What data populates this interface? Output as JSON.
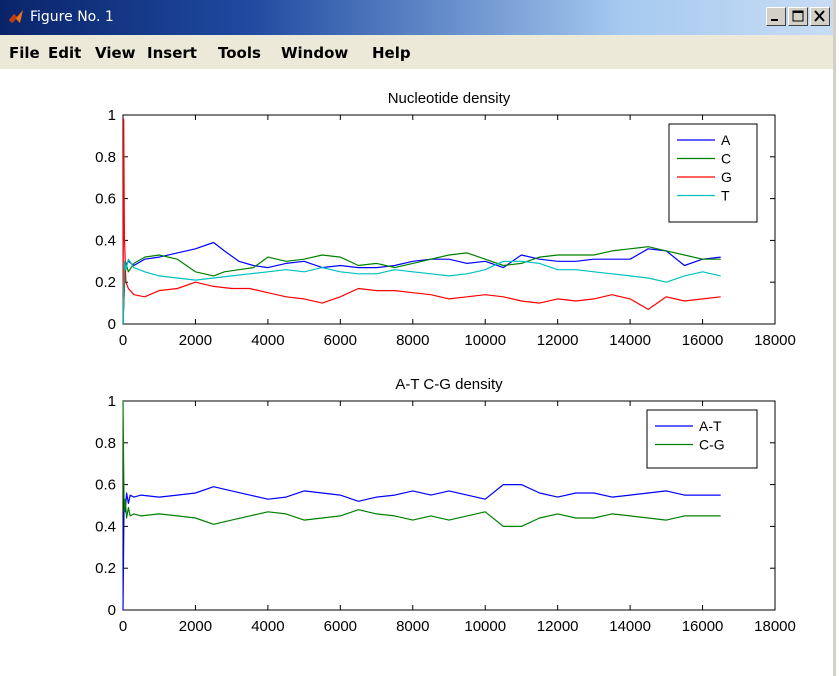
{
  "window": {
    "title": "Figure No. 1"
  },
  "menu": [
    "File",
    "Edit",
    "View",
    "Insert",
    "Tools",
    "Window",
    "Help"
  ],
  "colors": {
    "A": "#0000ff",
    "C": "#008000",
    "G": "#ff0000",
    "T": "#00c0c0",
    "AT": "#0000ff",
    "CG": "#008000"
  },
  "icons": {
    "app": "matlab-logo-icon",
    "minimize": "minimize-icon",
    "maximize": "maximize-icon",
    "close": "close-icon"
  },
  "chart_data": [
    {
      "type": "line",
      "title": "Nucleotide density",
      "xlabel": "",
      "ylabel": "",
      "xlim": [
        0,
        18000
      ],
      "ylim": [
        0,
        1
      ],
      "xticks": [
        0,
        2000,
        4000,
        6000,
        8000,
        10000,
        12000,
        14000,
        16000,
        18000
      ],
      "xtick_labels": [
        "0",
        "2000",
        "4000",
        "6000",
        "8000",
        "10000",
        "12000",
        "14000",
        "16000",
        "18000"
      ],
      "yticks": [
        0,
        0.2,
        0.4,
        0.6,
        0.8,
        1
      ],
      "ytick_labels": [
        "0",
        "0.2",
        "0.4",
        "0.6",
        "0.8",
        "1"
      ],
      "legend_position": "top-right",
      "series": [
        {
          "name": "A",
          "x": [
            0,
            60,
            150,
            300,
            600,
            1000,
            1500,
            2000,
            2500,
            2800,
            3200,
            3600,
            4000,
            4500,
            5000,
            5500,
            6000,
            6500,
            7000,
            7500,
            8000,
            8500,
            9000,
            9500,
            10000,
            10500,
            11000,
            11500,
            12000,
            12500,
            13000,
            13500,
            14000,
            14500,
            15000,
            15500,
            16000,
            16500
          ],
          "y": [
            0.0,
            0.28,
            0.3,
            0.28,
            0.31,
            0.32,
            0.34,
            0.36,
            0.39,
            0.35,
            0.3,
            0.28,
            0.27,
            0.29,
            0.3,
            0.27,
            0.28,
            0.27,
            0.27,
            0.28,
            0.3,
            0.31,
            0.31,
            0.29,
            0.3,
            0.27,
            0.33,
            0.31,
            0.3,
            0.3,
            0.31,
            0.31,
            0.31,
            0.36,
            0.35,
            0.28,
            0.31,
            0.32
          ]
        },
        {
          "name": "C",
          "x": [
            0,
            60,
            150,
            300,
            600,
            1000,
            1500,
            2000,
            2500,
            2800,
            3200,
            3600,
            4000,
            4500,
            5000,
            5500,
            6000,
            6500,
            7000,
            7500,
            8000,
            8500,
            9000,
            9500,
            10000,
            10500,
            11000,
            11500,
            12000,
            12500,
            13000,
            13500,
            14000,
            14500,
            15000,
            15500,
            16000,
            16500
          ],
          "y": [
            0.0,
            0.3,
            0.25,
            0.29,
            0.32,
            0.33,
            0.31,
            0.25,
            0.23,
            0.25,
            0.26,
            0.27,
            0.32,
            0.3,
            0.31,
            0.33,
            0.32,
            0.28,
            0.29,
            0.27,
            0.29,
            0.31,
            0.33,
            0.34,
            0.31,
            0.28,
            0.29,
            0.32,
            0.33,
            0.33,
            0.33,
            0.35,
            0.36,
            0.37,
            0.35,
            0.33,
            0.31,
            0.31
          ]
        },
        {
          "name": "G",
          "x": [
            0,
            20,
            40,
            80,
            150,
            300,
            600,
            1000,
            1500,
            2000,
            2500,
            3000,
            3500,
            4000,
            4500,
            5000,
            5500,
            6000,
            6500,
            7000,
            7500,
            8000,
            8500,
            9000,
            9500,
            10000,
            10500,
            11000,
            11500,
            12000,
            12500,
            13000,
            13500,
            14000,
            14500,
            15000,
            15500,
            16000,
            16500
          ],
          "y": [
            0.0,
            0.98,
            0.42,
            0.2,
            0.17,
            0.14,
            0.13,
            0.16,
            0.17,
            0.2,
            0.18,
            0.17,
            0.17,
            0.15,
            0.13,
            0.12,
            0.1,
            0.13,
            0.17,
            0.16,
            0.16,
            0.15,
            0.14,
            0.12,
            0.13,
            0.14,
            0.13,
            0.11,
            0.1,
            0.12,
            0.11,
            0.12,
            0.14,
            0.12,
            0.07,
            0.13,
            0.11,
            0.12,
            0.13
          ]
        },
        {
          "name": "T",
          "x": [
            0,
            40,
            80,
            150,
            300,
            600,
            1000,
            1500,
            2000,
            2500,
            3000,
            3500,
            4000,
            4500,
            5000,
            5500,
            6000,
            6500,
            7000,
            7500,
            8000,
            8500,
            9000,
            9500,
            10000,
            10500,
            11000,
            11500,
            12000,
            12500,
            13000,
            13500,
            14000,
            14500,
            15000,
            15500,
            16000,
            16500
          ],
          "y": [
            0.0,
            0.3,
            0.26,
            0.31,
            0.27,
            0.25,
            0.23,
            0.22,
            0.21,
            0.22,
            0.23,
            0.24,
            0.25,
            0.26,
            0.25,
            0.27,
            0.25,
            0.24,
            0.24,
            0.26,
            0.25,
            0.24,
            0.23,
            0.24,
            0.26,
            0.3,
            0.3,
            0.29,
            0.26,
            0.26,
            0.25,
            0.24,
            0.23,
            0.22,
            0.2,
            0.23,
            0.25,
            0.23
          ]
        }
      ]
    },
    {
      "type": "line",
      "title": "A-T C-G density",
      "xlabel": "",
      "ylabel": "",
      "xlim": [
        0,
        18000
      ],
      "ylim": [
        0,
        1
      ],
      "xticks": [
        0,
        2000,
        4000,
        6000,
        8000,
        10000,
        12000,
        14000,
        16000,
        18000
      ],
      "xtick_labels": [
        "0",
        "2000",
        "4000",
        "6000",
        "8000",
        "10000",
        "12000",
        "14000",
        "16000",
        "18000"
      ],
      "yticks": [
        0,
        0.2,
        0.4,
        0.6,
        0.8,
        1
      ],
      "ytick_labels": [
        "0",
        "0.2",
        "0.4",
        "0.6",
        "0.8",
        "1"
      ],
      "legend_position": "top-right",
      "series": [
        {
          "name": "A-T",
          "x": [
            0,
            30,
            60,
            100,
            150,
            200,
            300,
            500,
            1000,
            1500,
            2000,
            2500,
            3000,
            3500,
            4000,
            4500,
            5000,
            5500,
            6000,
            6500,
            7000,
            7500,
            8000,
            8500,
            9000,
            9500,
            10000,
            10500,
            11000,
            11500,
            12000,
            12500,
            13000,
            13500,
            14000,
            14500,
            15000,
            15500,
            16000,
            16500
          ],
          "y": [
            0.0,
            0.53,
            0.47,
            0.56,
            0.51,
            0.55,
            0.54,
            0.55,
            0.54,
            0.55,
            0.56,
            0.59,
            0.57,
            0.55,
            0.53,
            0.54,
            0.57,
            0.56,
            0.55,
            0.52,
            0.54,
            0.55,
            0.57,
            0.55,
            0.57,
            0.55,
            0.53,
            0.6,
            0.6,
            0.56,
            0.54,
            0.56,
            0.56,
            0.54,
            0.55,
            0.56,
            0.57,
            0.55,
            0.55,
            0.55
          ]
        },
        {
          "name": "C-G",
          "x": [
            0,
            30,
            60,
            100,
            150,
            200,
            300,
            500,
            1000,
            1500,
            2000,
            2500,
            3000,
            3500,
            4000,
            4500,
            5000,
            5500,
            6000,
            6500,
            7000,
            7500,
            8000,
            8500,
            9000,
            9500,
            10000,
            10500,
            11000,
            11500,
            12000,
            12500,
            13000,
            13500,
            14000,
            14500,
            15000,
            15500,
            16000,
            16500
          ],
          "y": [
            1.0,
            0.47,
            0.53,
            0.44,
            0.49,
            0.45,
            0.46,
            0.45,
            0.46,
            0.45,
            0.44,
            0.41,
            0.43,
            0.45,
            0.47,
            0.46,
            0.43,
            0.44,
            0.45,
            0.48,
            0.46,
            0.45,
            0.43,
            0.45,
            0.43,
            0.45,
            0.47,
            0.4,
            0.4,
            0.44,
            0.46,
            0.44,
            0.44,
            0.46,
            0.45,
            0.44,
            0.43,
            0.45,
            0.45,
            0.45
          ]
        }
      ]
    }
  ]
}
